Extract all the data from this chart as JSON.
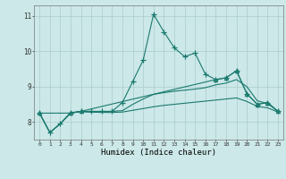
{
  "xlabel": "Humidex (Indice chaleur)",
  "xlim": [
    -0.5,
    23.5
  ],
  "ylim": [
    7.5,
    11.3
  ],
  "yticks": [
    8,
    9,
    10,
    11
  ],
  "xticks": [
    0,
    1,
    2,
    3,
    4,
    5,
    6,
    7,
    8,
    9,
    10,
    11,
    12,
    13,
    14,
    15,
    16,
    17,
    18,
    19,
    20,
    21,
    22,
    23
  ],
  "bg_color": "#cce8e8",
  "line_color": "#1a7a6e",
  "grid_color": "#aacccc",
  "lines": [
    {
      "x": [
        0,
        1,
        2,
        3,
        4,
        5,
        6,
        7,
        8,
        9,
        10,
        11,
        12,
        13,
        14,
        15,
        16,
        17,
        18,
        19,
        20,
        21,
        22,
        23
      ],
      "y": [
        8.25,
        7.7,
        7.95,
        8.25,
        8.3,
        8.3,
        8.3,
        8.3,
        8.55,
        9.15,
        9.75,
        11.05,
        10.55,
        10.1,
        9.85,
        9.95,
        9.35,
        9.2,
        9.25,
        9.45,
        8.8,
        8.5,
        8.55,
        8.3
      ],
      "marker": "+",
      "markersize": 4
    },
    {
      "x": [
        0,
        1,
        2,
        3,
        4,
        5,
        6,
        7,
        8,
        9,
        10,
        11,
        12,
        13,
        14,
        15,
        16,
        17,
        18,
        19,
        20,
        21,
        22,
        23
      ],
      "y": [
        8.25,
        7.7,
        7.95,
        8.25,
        8.3,
        8.28,
        8.28,
        8.3,
        8.32,
        8.5,
        8.65,
        8.78,
        8.83,
        8.87,
        8.9,
        8.93,
        8.97,
        9.05,
        9.1,
        9.2,
        9.0,
        8.6,
        8.52,
        8.3
      ],
      "marker": null,
      "markersize": 0
    },
    {
      "x": [
        0,
        1,
        2,
        3,
        4,
        5,
        6,
        7,
        8,
        9,
        10,
        11,
        12,
        13,
        14,
        15,
        16,
        17,
        18,
        19,
        20,
        21,
        22,
        23
      ],
      "y": [
        8.25,
        7.7,
        7.95,
        8.27,
        8.29,
        8.28,
        8.27,
        8.27,
        8.28,
        8.33,
        8.38,
        8.43,
        8.47,
        8.5,
        8.53,
        8.56,
        8.59,
        8.62,
        8.65,
        8.68,
        8.58,
        8.44,
        8.4,
        8.28
      ],
      "marker": null,
      "markersize": 0
    },
    {
      "x": [
        0,
        3,
        4,
        17,
        18,
        19,
        20,
        21,
        22,
        23
      ],
      "y": [
        8.25,
        8.25,
        8.3,
        9.2,
        9.25,
        9.45,
        8.8,
        8.5,
        8.55,
        8.3
      ],
      "marker": "^",
      "markersize": 3
    }
  ]
}
